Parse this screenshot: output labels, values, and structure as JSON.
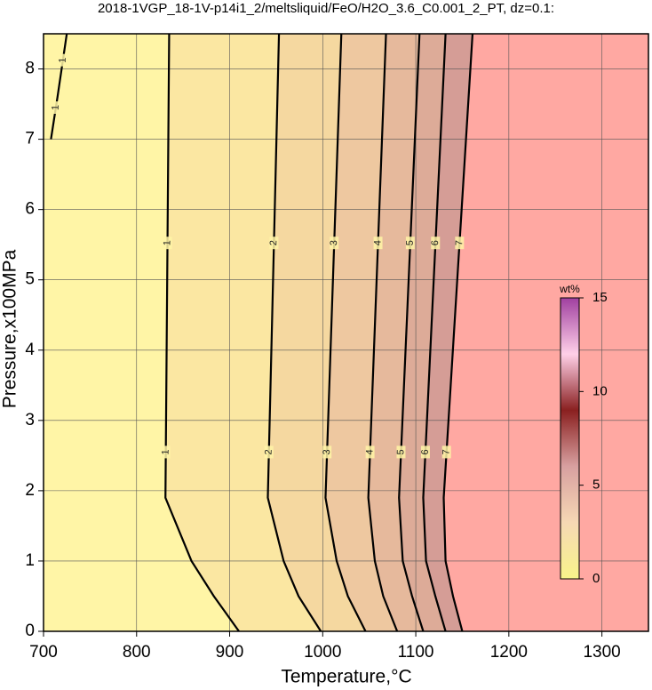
{
  "chart_data": {
    "type": "contour",
    "title": "2018-1VGP_18-1V-p14i1_2/meltsliquid/FeO/H2O_3.6_C0.001_2_PT, dz=0.1:",
    "x_label": "Temperature,°C",
    "y_label": "Pressure,x100MPa",
    "xlim": [
      700,
      1350
    ],
    "ylim": [
      0,
      8.5
    ],
    "xticks": [
      700,
      800,
      900,
      1000,
      1100,
      1200,
      1300
    ],
    "yticks": [
      0,
      1,
      2,
      3,
      4,
      5,
      6,
      7,
      8
    ],
    "grid": true,
    "line_color": "#000000",
    "band_colors": [
      "#fff5a6",
      "#fbe7a2",
      "#f5d8a0",
      "#eec8a0",
      "#e6b99c",
      "#ddab98",
      "#d59d96",
      "#ffa8a2"
    ],
    "contours": [
      {
        "level": 1,
        "x": [
          910,
          883,
          859,
          831,
          835
        ],
        "y": [
          0,
          0.5,
          1,
          1.9,
          8.5
        ]
      },
      {
        "level": 2,
        "x": [
          998,
          974,
          958,
          941,
          953
        ],
        "y": [
          0,
          0.5,
          1,
          1.9,
          8.5
        ]
      },
      {
        "level": 3,
        "x": [
          1046,
          1027,
          1015,
          1003,
          1020
        ],
        "y": [
          0,
          0.5,
          1,
          1.9,
          8.5
        ]
      },
      {
        "level": 4,
        "x": [
          1080,
          1065,
          1056,
          1049,
          1068
        ],
        "y": [
          0,
          0.5,
          1,
          1.9,
          8.5
        ]
      },
      {
        "level": 5,
        "x": [
          1108,
          1096,
          1086,
          1082,
          1104
        ],
        "y": [
          0,
          0.5,
          1,
          1.9,
          8.5
        ]
      },
      {
        "level": 6,
        "x": [
          1132,
          1121,
          1111,
          1108,
          1132
        ],
        "y": [
          0,
          0.5,
          1,
          1.9,
          8.5
        ]
      },
      {
        "level": 7,
        "x": [
          1150,
          1140,
          1132,
          1130,
          1161
        ],
        "y": [
          0,
          0.5,
          1,
          1.9,
          8.5
        ]
      }
    ],
    "extra_contours": [
      {
        "level": 1,
        "x": [
          708,
          715,
          725
        ],
        "y": [
          7.0,
          7.6,
          8.5
        ]
      }
    ],
    "colorbar": {
      "label": "wt%",
      "lim": [
        0,
        15
      ],
      "ticks": [
        0,
        5,
        10,
        15
      ],
      "colors": [
        "#f8f48a",
        "#f6d8b4",
        "#d8a0a0",
        "#8a2020",
        "#ffd0e8",
        "#a040a0"
      ]
    }
  }
}
